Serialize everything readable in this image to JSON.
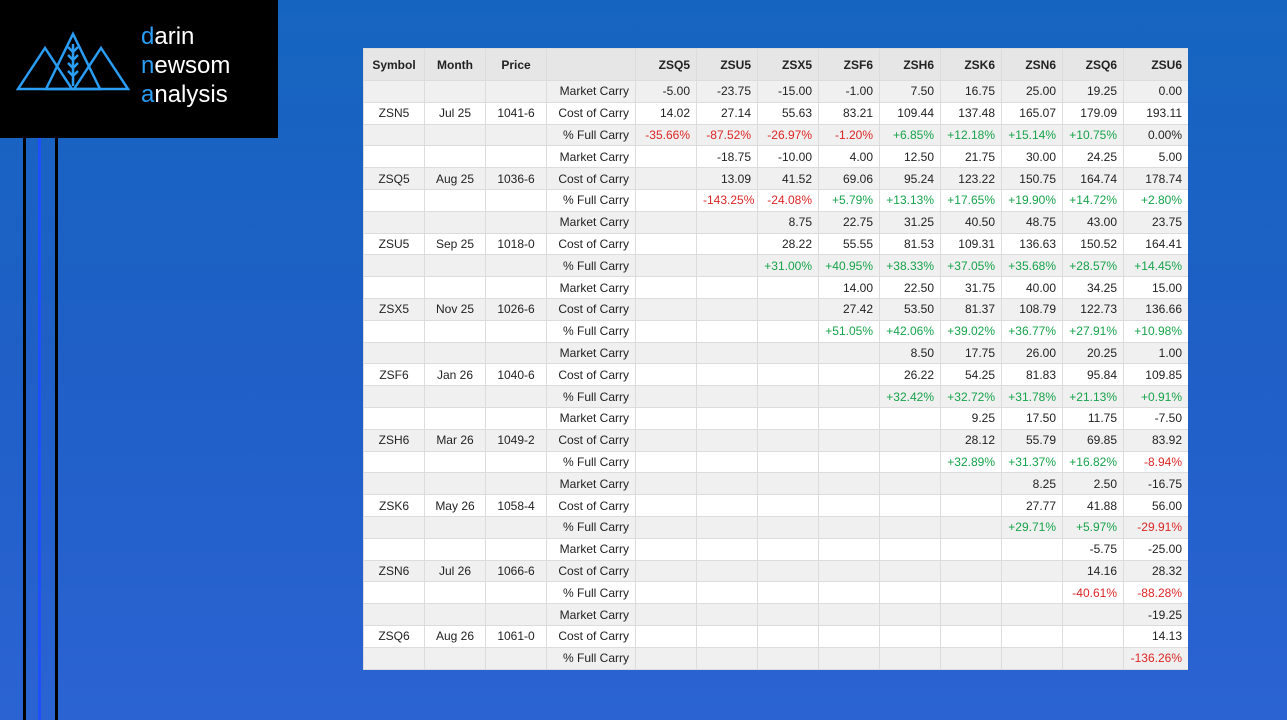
{
  "logo": {
    "lines": [
      "darin",
      "newsom",
      "analysis"
    ]
  },
  "table": {
    "header": [
      "Symbol",
      "Month",
      "Price",
      null,
      "ZSQ5",
      "ZSU5",
      "ZSX5",
      "ZSF6",
      "ZSH6",
      "ZSK6",
      "ZSN6",
      "ZSQ6",
      "ZSU6"
    ],
    "rows": [
      [
        null,
        null,
        null,
        "Market Carry",
        "-5.00",
        "-23.75",
        "-15.00",
        "-1.00",
        "7.50",
        "16.75",
        "25.00",
        "19.25",
        "0.00"
      ],
      [
        "ZSN5",
        "Jul 25",
        "1041-6",
        "Cost of Carry",
        "14.02",
        "27.14",
        "55.63",
        "83.21",
        "109.44",
        "137.48",
        "165.07",
        "179.09",
        "193.11"
      ],
      [
        null,
        null,
        null,
        "% Full Carry",
        "-35.66%",
        "-87.52%",
        "-26.97%",
        "-1.20%",
        "+6.85%",
        "+12.18%",
        "+15.14%",
        "+10.75%",
        "0.00%"
      ],
      [
        null,
        null,
        null,
        "Market Carry",
        null,
        "-18.75",
        "-10.00",
        "4.00",
        "12.50",
        "21.75",
        "30.00",
        "24.25",
        "5.00"
      ],
      [
        "ZSQ5",
        "Aug 25",
        "1036-6",
        "Cost of Carry",
        null,
        "13.09",
        "41.52",
        "69.06",
        "95.24",
        "123.22",
        "150.75",
        "164.74",
        "178.74"
      ],
      [
        null,
        null,
        null,
        "% Full Carry",
        null,
        "-143.25%",
        "-24.08%",
        "+5.79%",
        "+13.13%",
        "+17.65%",
        "+19.90%",
        "+14.72%",
        "+2.80%"
      ],
      [
        null,
        null,
        null,
        "Market Carry",
        null,
        null,
        "8.75",
        "22.75",
        "31.25",
        "40.50",
        "48.75",
        "43.00",
        "23.75"
      ],
      [
        "ZSU5",
        "Sep 25",
        "1018-0",
        "Cost of Carry",
        null,
        null,
        "28.22",
        "55.55",
        "81.53",
        "109.31",
        "136.63",
        "150.52",
        "164.41"
      ],
      [
        null,
        null,
        null,
        "% Full Carry",
        null,
        null,
        "+31.00%",
        "+40.95%",
        "+38.33%",
        "+37.05%",
        "+35.68%",
        "+28.57%",
        "+14.45%"
      ],
      [
        null,
        null,
        null,
        "Market Carry",
        null,
        null,
        null,
        "14.00",
        "22.50",
        "31.75",
        "40.00",
        "34.25",
        "15.00"
      ],
      [
        "ZSX5",
        "Nov 25",
        "1026-6",
        "Cost of Carry",
        null,
        null,
        null,
        "27.42",
        "53.50",
        "81.37",
        "108.79",
        "122.73",
        "136.66"
      ],
      [
        null,
        null,
        null,
        "% Full Carry",
        null,
        null,
        null,
        "+51.05%",
        "+42.06%",
        "+39.02%",
        "+36.77%",
        "+27.91%",
        "+10.98%"
      ],
      [
        null,
        null,
        null,
        "Market Carry",
        null,
        null,
        null,
        null,
        "8.50",
        "17.75",
        "26.00",
        "20.25",
        "1.00"
      ],
      [
        "ZSF6",
        "Jan 26",
        "1040-6",
        "Cost of Carry",
        null,
        null,
        null,
        null,
        "26.22",
        "54.25",
        "81.83",
        "95.84",
        "109.85"
      ],
      [
        null,
        null,
        null,
        "% Full Carry",
        null,
        null,
        null,
        null,
        "+32.42%",
        "+32.72%",
        "+31.78%",
        "+21.13%",
        "+0.91%"
      ],
      [
        null,
        null,
        null,
        "Market Carry",
        null,
        null,
        null,
        null,
        null,
        "9.25",
        "17.50",
        "11.75",
        "-7.50"
      ],
      [
        "ZSH6",
        "Mar 26",
        "1049-2",
        "Cost of Carry",
        null,
        null,
        null,
        null,
        null,
        "28.12",
        "55.79",
        "69.85",
        "83.92"
      ],
      [
        null,
        null,
        null,
        "% Full Carry",
        null,
        null,
        null,
        null,
        null,
        "+32.89%",
        "+31.37%",
        "+16.82%",
        "-8.94%"
      ],
      [
        null,
        null,
        null,
        "Market Carry",
        null,
        null,
        null,
        null,
        null,
        null,
        "8.25",
        "2.50",
        "-16.75"
      ],
      [
        "ZSK6",
        "May 26",
        "1058-4",
        "Cost of Carry",
        null,
        null,
        null,
        null,
        null,
        null,
        "27.77",
        "41.88",
        "56.00"
      ],
      [
        null,
        null,
        null,
        "% Full Carry",
        null,
        null,
        null,
        null,
        null,
        null,
        "+29.71%",
        "+5.97%",
        "-29.91%"
      ],
      [
        null,
        null,
        null,
        "Market Carry",
        null,
        null,
        null,
        null,
        null,
        null,
        null,
        "-5.75",
        "-25.00"
      ],
      [
        "ZSN6",
        "Jul 26",
        "1066-6",
        "Cost of Carry",
        null,
        null,
        null,
        null,
        null,
        null,
        null,
        "14.16",
        "28.32"
      ],
      [
        null,
        null,
        null,
        "% Full Carry",
        null,
        null,
        null,
        null,
        null,
        null,
        null,
        "-40.61%",
        "-88.28%"
      ],
      [
        null,
        null,
        null,
        "Market Carry",
        null,
        null,
        null,
        null,
        null,
        null,
        null,
        null,
        "-19.25"
      ],
      [
        "ZSQ6",
        "Aug 26",
        "1061-0",
        "Cost of Carry",
        null,
        null,
        null,
        null,
        null,
        null,
        null,
        null,
        "14.13"
      ],
      [
        null,
        null,
        null,
        "% Full Carry",
        null,
        null,
        null,
        null,
        null,
        null,
        null,
        null,
        "-136.26%"
      ]
    ]
  }
}
